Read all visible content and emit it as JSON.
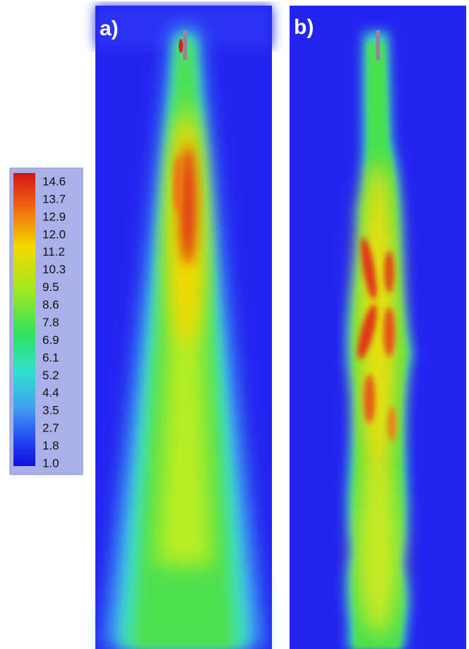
{
  "panels": [
    {
      "label": "a)"
    },
    {
      "label": "b)"
    }
  ],
  "colorbar": {
    "labels": [
      "14.6",
      "13.7",
      "12.9",
      "12.0",
      "11.2",
      "10.3",
      "9.5",
      "8.6",
      "7.8",
      "6.9",
      "6.1",
      "5.2",
      "4.4",
      "3.5",
      "2.7",
      "1.8",
      "1.0"
    ]
  }
}
